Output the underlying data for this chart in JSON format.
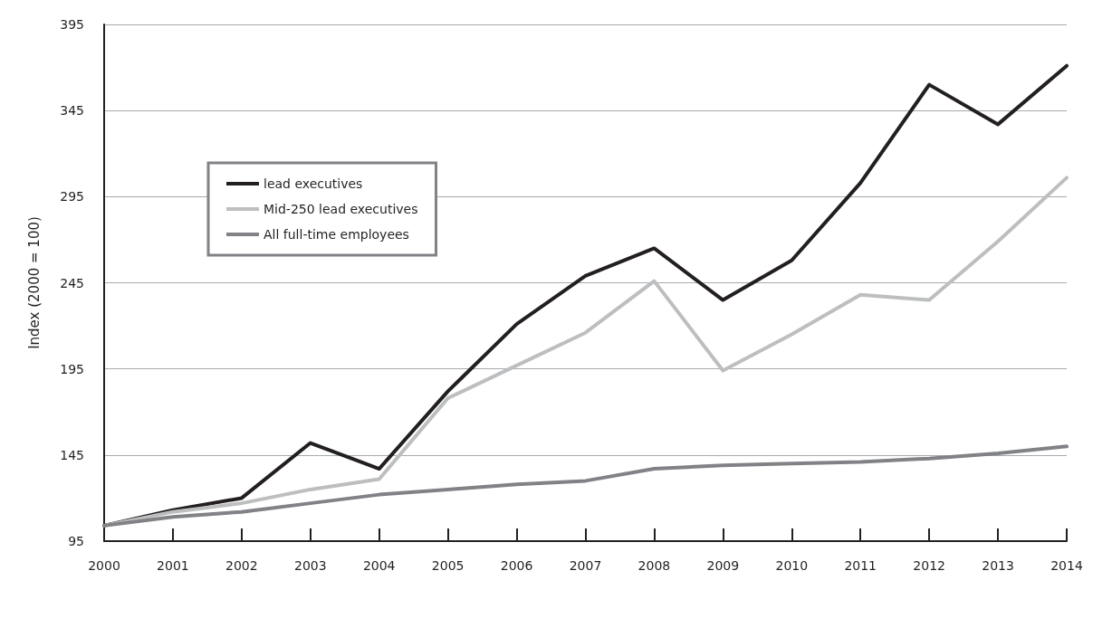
{
  "chart_data": {
    "type": "line",
    "ylabel": "Index (2000 = 100)",
    "categories": [
      "2000",
      "2001",
      "2002",
      "2003",
      "2004",
      "2005",
      "2006",
      "2007",
      "2008",
      "2009",
      "2010",
      "2011",
      "2012",
      "2013",
      "2014"
    ],
    "series": [
      {
        "name": "lead executives",
        "color": "#231f20",
        "values": [
          104,
          113,
          120,
          152,
          137,
          182,
          221,
          249,
          265,
          235,
          258,
          303,
          360,
          337,
          371
        ]
      },
      {
        "name": "Mid-250 lead executives",
        "color": "#bcbec0",
        "values": [
          104,
          112,
          117,
          125,
          131,
          178,
          197,
          216,
          246,
          194,
          215,
          238,
          235,
          269,
          306
        ]
      },
      {
        "name": "All full-time employees",
        "color": "#808285",
        "values": [
          104,
          109,
          112,
          117,
          122,
          125,
          128,
          130,
          137,
          139,
          140,
          141,
          143,
          146,
          150
        ]
      }
    ],
    "ylim": [
      95,
      395
    ],
    "yticks": [
      95,
      145,
      195,
      245,
      295,
      345,
      395
    ],
    "grid": "y",
    "legend": "top left",
    "marker": "none",
    "line_style": "solid"
  }
}
